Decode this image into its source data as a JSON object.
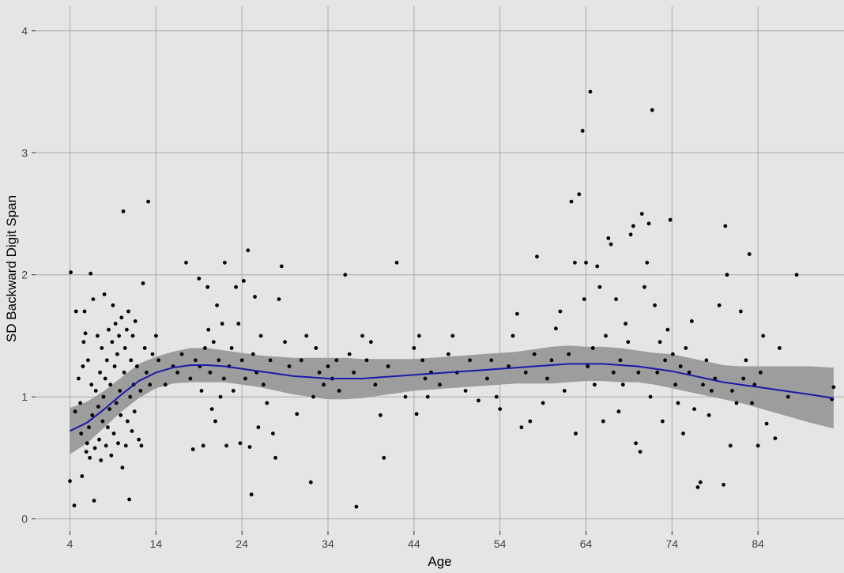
{
  "chart_data": {
    "type": "scatter",
    "title": "",
    "xlabel": "Age",
    "ylabel": "SD Backward Digit Span",
    "xlim": [
      0,
      94
    ],
    "ylim": [
      -0.1,
      4.2
    ],
    "x_ticks": [
      4,
      14,
      24,
      34,
      44,
      54,
      64,
      74,
      84
    ],
    "x_tick_labels": [
      "4",
      "14",
      "24",
      "34",
      "44",
      "54",
      "64",
      "74",
      "84"
    ],
    "y_ticks": [
      0,
      1,
      2,
      3,
      4
    ],
    "y_tick_labels": [
      "0",
      "1",
      "2",
      "3",
      "4"
    ],
    "grid": true,
    "colors": {
      "background": "#e5e5e5",
      "grid": "#aaaaaa",
      "points": "#000000",
      "smooth_line": "#1a1aa8",
      "confidence_band": "#999999"
    },
    "points": [
      [
        4.1,
        2.02
      ],
      [
        4.0,
        0.31
      ],
      [
        4.5,
        0.11
      ],
      [
        4.6,
        0.88
      ],
      [
        4.7,
        1.7
      ],
      [
        5.0,
        1.15
      ],
      [
        5.2,
        0.95
      ],
      [
        5.3,
        0.7
      ],
      [
        5.4,
        0.35
      ],
      [
        5.5,
        1.25
      ],
      [
        5.6,
        1.45
      ],
      [
        5.7,
        1.7
      ],
      [
        5.8,
        1.52
      ],
      [
        5.9,
        0.55
      ],
      [
        6.0,
        0.62
      ],
      [
        6.1,
        1.3
      ],
      [
        6.2,
        0.75
      ],
      [
        6.3,
        0.5
      ],
      [
        6.4,
        2.01
      ],
      [
        6.5,
        1.1
      ],
      [
        6.6,
        0.85
      ],
      [
        6.7,
        1.8
      ],
      [
        6.8,
        0.15
      ],
      [
        6.9,
        0.58
      ],
      [
        7.0,
        1.05
      ],
      [
        7.2,
        1.5
      ],
      [
        7.3,
        0.92
      ],
      [
        7.4,
        0.65
      ],
      [
        7.5,
        1.2
      ],
      [
        7.6,
        0.48
      ],
      [
        7.7,
        1.4
      ],
      [
        7.8,
        0.8
      ],
      [
        7.9,
        1.0
      ],
      [
        8.0,
        1.84
      ],
      [
        8.1,
        1.15
      ],
      [
        8.2,
        0.6
      ],
      [
        8.3,
        1.3
      ],
      [
        8.4,
        0.75
      ],
      [
        8.5,
        1.55
      ],
      [
        8.6,
        0.9
      ],
      [
        8.7,
        1.1
      ],
      [
        8.8,
        0.52
      ],
      [
        8.9,
        1.45
      ],
      [
        9.0,
        1.75
      ],
      [
        9.1,
        0.7
      ],
      [
        9.2,
        1.25
      ],
      [
        9.3,
        1.6
      ],
      [
        9.4,
        0.95
      ],
      [
        9.5,
        1.35
      ],
      [
        9.6,
        0.62
      ],
      [
        9.7,
        1.5
      ],
      [
        9.8,
        1.05
      ],
      [
        9.9,
        0.85
      ],
      [
        10.0,
        1.65
      ],
      [
        10.1,
        0.42
      ],
      [
        10.2,
        2.52
      ],
      [
        10.3,
        1.2
      ],
      [
        10.4,
        1.4
      ],
      [
        10.5,
        0.6
      ],
      [
        10.6,
        1.55
      ],
      [
        10.7,
        0.8
      ],
      [
        10.8,
        1.7
      ],
      [
        10.9,
        0.16
      ],
      [
        11.0,
        1.0
      ],
      [
        11.1,
        1.3
      ],
      [
        11.2,
        0.72
      ],
      [
        11.3,
        1.5
      ],
      [
        11.4,
        1.1
      ],
      [
        11.5,
        0.88
      ],
      [
        11.6,
        1.62
      ],
      [
        11.8,
        1.25
      ],
      [
        12.0,
        0.65
      ],
      [
        12.2,
        1.05
      ],
      [
        12.3,
        0.6
      ],
      [
        12.5,
        1.93
      ],
      [
        12.7,
        1.4
      ],
      [
        12.9,
        1.2
      ],
      [
        13.1,
        2.6
      ],
      [
        13.3,
        1.1
      ],
      [
        13.6,
        1.35
      ],
      [
        14.0,
        1.5
      ],
      [
        14.3,
        1.3
      ],
      [
        15.1,
        1.1
      ],
      [
        16.0,
        1.25
      ],
      [
        16.5,
        1.2
      ],
      [
        17.0,
        1.35
      ],
      [
        17.5,
        2.1
      ],
      [
        18.0,
        1.15
      ],
      [
        18.3,
        0.57
      ],
      [
        18.6,
        1.3
      ],
      [
        19.0,
        1.97
      ],
      [
        19.1,
        1.25
      ],
      [
        19.3,
        1.05
      ],
      [
        19.5,
        0.6
      ],
      [
        19.7,
        1.4
      ],
      [
        20.0,
        1.9
      ],
      [
        20.1,
        1.55
      ],
      [
        20.3,
        1.2
      ],
      [
        20.5,
        0.9
      ],
      [
        20.7,
        1.45
      ],
      [
        20.9,
        0.8
      ],
      [
        21.1,
        1.75
      ],
      [
        21.3,
        1.3
      ],
      [
        21.5,
        1.0
      ],
      [
        21.7,
        1.6
      ],
      [
        21.9,
        1.15
      ],
      [
        22.0,
        2.1
      ],
      [
        22.2,
        0.6
      ],
      [
        22.5,
        1.25
      ],
      [
        22.8,
        1.4
      ],
      [
        23.0,
        1.05
      ],
      [
        23.3,
        1.9
      ],
      [
        23.6,
        1.6
      ],
      [
        23.8,
        0.62
      ],
      [
        24.0,
        1.3
      ],
      [
        24.2,
        1.95
      ],
      [
        24.4,
        1.15
      ],
      [
        24.7,
        2.2
      ],
      [
        24.9,
        0.59
      ],
      [
        25.1,
        0.2
      ],
      [
        25.3,
        1.35
      ],
      [
        25.5,
        1.82
      ],
      [
        25.7,
        1.2
      ],
      [
        25.9,
        0.75
      ],
      [
        26.2,
        1.5
      ],
      [
        26.5,
        1.1
      ],
      [
        26.9,
        0.95
      ],
      [
        27.3,
        1.3
      ],
      [
        27.6,
        0.7
      ],
      [
        27.9,
        0.5
      ],
      [
        28.3,
        1.8
      ],
      [
        28.6,
        2.07
      ],
      [
        29.0,
        1.45
      ],
      [
        29.5,
        1.25
      ],
      [
        30.4,
        0.86
      ],
      [
        30.9,
        1.3
      ],
      [
        31.5,
        1.5
      ],
      [
        32.0,
        0.3
      ],
      [
        32.3,
        1.0
      ],
      [
        32.6,
        1.4
      ],
      [
        33.0,
        1.2
      ],
      [
        33.5,
        1.1
      ],
      [
        34.0,
        1.25
      ],
      [
        34.5,
        1.15
      ],
      [
        35.0,
        1.3
      ],
      [
        35.3,
        1.05
      ],
      [
        36.0,
        2.0
      ],
      [
        36.5,
        1.35
      ],
      [
        37.0,
        1.2
      ],
      [
        37.3,
        0.1
      ],
      [
        38.0,
        1.5
      ],
      [
        38.5,
        1.3
      ],
      [
        39.0,
        1.45
      ],
      [
        39.5,
        1.1
      ],
      [
        40.1,
        0.85
      ],
      [
        40.5,
        0.5
      ],
      [
        41.0,
        1.25
      ],
      [
        42.0,
        2.1
      ],
      [
        43.0,
        1.0
      ],
      [
        44.0,
        1.4
      ],
      [
        44.3,
        0.86
      ],
      [
        44.6,
        1.5
      ],
      [
        45.0,
        1.3
      ],
      [
        45.3,
        1.15
      ],
      [
        45.6,
        1.0
      ],
      [
        46.0,
        1.2
      ],
      [
        47.0,
        1.1
      ],
      [
        48.0,
        1.35
      ],
      [
        48.5,
        1.5
      ],
      [
        49.0,
        1.2
      ],
      [
        50.0,
        1.05
      ],
      [
        50.5,
        1.3
      ],
      [
        51.5,
        0.97
      ],
      [
        52.5,
        1.15
      ],
      [
        53.0,
        1.3
      ],
      [
        53.6,
        1.0
      ],
      [
        54.0,
        0.9
      ],
      [
        55.0,
        1.25
      ],
      [
        55.5,
        1.5
      ],
      [
        56.0,
        1.68
      ],
      [
        56.5,
        0.75
      ],
      [
        57.0,
        1.2
      ],
      [
        57.5,
        0.8
      ],
      [
        58.0,
        1.35
      ],
      [
        58.3,
        2.15
      ],
      [
        59.0,
        0.95
      ],
      [
        59.5,
        1.15
      ],
      [
        60.0,
        1.3
      ],
      [
        60.5,
        1.56
      ],
      [
        61.0,
        1.7
      ],
      [
        61.5,
        1.05
      ],
      [
        62.0,
        1.35
      ],
      [
        62.3,
        2.6
      ],
      [
        62.7,
        2.1
      ],
      [
        62.8,
        0.7
      ],
      [
        63.2,
        2.66
      ],
      [
        63.6,
        3.18
      ],
      [
        63.8,
        1.8
      ],
      [
        64.0,
        2.1
      ],
      [
        64.2,
        1.25
      ],
      [
        64.5,
        3.5
      ],
      [
        64.8,
        1.4
      ],
      [
        65.0,
        1.1
      ],
      [
        65.3,
        2.07
      ],
      [
        65.6,
        1.9
      ],
      [
        66.0,
        0.8
      ],
      [
        66.3,
        1.5
      ],
      [
        66.6,
        2.3
      ],
      [
        66.9,
        2.25
      ],
      [
        67.2,
        1.2
      ],
      [
        67.5,
        1.8
      ],
      [
        67.8,
        0.88
      ],
      [
        68.0,
        1.3
      ],
      [
        68.3,
        1.1
      ],
      [
        68.6,
        1.6
      ],
      [
        68.9,
        1.45
      ],
      [
        69.2,
        2.33
      ],
      [
        69.5,
        2.4
      ],
      [
        69.8,
        0.62
      ],
      [
        70.1,
        1.2
      ],
      [
        70.3,
        0.55
      ],
      [
        70.5,
        2.5
      ],
      [
        70.8,
        1.9
      ],
      [
        71.1,
        2.1
      ],
      [
        71.3,
        2.42
      ],
      [
        71.5,
        1.0
      ],
      [
        71.7,
        3.35
      ],
      [
        72.0,
        1.75
      ],
      [
        72.3,
        1.2
      ],
      [
        72.6,
        1.45
      ],
      [
        72.9,
        0.8
      ],
      [
        73.2,
        1.3
      ],
      [
        73.5,
        1.55
      ],
      [
        73.8,
        2.45
      ],
      [
        74.1,
        1.35
      ],
      [
        74.4,
        1.1
      ],
      [
        74.7,
        0.95
      ],
      [
        75.0,
        1.25
      ],
      [
        75.3,
        0.7
      ],
      [
        75.6,
        1.4
      ],
      [
        76.0,
        1.2
      ],
      [
        76.3,
        1.62
      ],
      [
        76.6,
        0.9
      ],
      [
        77.0,
        0.26
      ],
      [
        77.3,
        0.3
      ],
      [
        77.6,
        1.1
      ],
      [
        78.0,
        1.3
      ],
      [
        78.3,
        0.85
      ],
      [
        78.6,
        1.05
      ],
      [
        79.0,
        1.15
      ],
      [
        79.5,
        1.75
      ],
      [
        80.0,
        0.28
      ],
      [
        80.2,
        2.4
      ],
      [
        80.4,
        2.0
      ],
      [
        80.8,
        0.6
      ],
      [
        81.0,
        1.05
      ],
      [
        81.5,
        0.95
      ],
      [
        82.0,
        1.7
      ],
      [
        82.3,
        1.15
      ],
      [
        82.6,
        1.3
      ],
      [
        83.0,
        2.17
      ],
      [
        83.3,
        0.95
      ],
      [
        83.6,
        1.1
      ],
      [
        84.0,
        0.6
      ],
      [
        84.3,
        1.2
      ],
      [
        84.6,
        1.5
      ],
      [
        85.0,
        0.78
      ],
      [
        86.0,
        0.66
      ],
      [
        86.5,
        1.4
      ],
      [
        87.5,
        1.0
      ],
      [
        88.5,
        2.0
      ],
      [
        92.6,
        0.98
      ],
      [
        92.8,
        1.08
      ]
    ],
    "smooth": {
      "x": [
        4,
        6,
        8,
        10,
        12,
        14,
        16,
        18,
        20,
        22,
        24,
        26,
        28,
        30,
        32,
        34,
        36,
        38,
        40,
        42,
        44,
        46,
        48,
        50,
        52,
        54,
        56,
        58,
        60,
        62,
        64,
        66,
        68,
        70,
        72,
        74,
        76,
        78,
        80,
        82,
        84,
        86,
        88,
        90,
        92.8
      ],
      "y": [
        0.72,
        0.79,
        0.9,
        1.02,
        1.13,
        1.2,
        1.24,
        1.26,
        1.26,
        1.25,
        1.23,
        1.21,
        1.19,
        1.17,
        1.16,
        1.15,
        1.15,
        1.15,
        1.16,
        1.17,
        1.18,
        1.19,
        1.2,
        1.21,
        1.22,
        1.23,
        1.24,
        1.25,
        1.26,
        1.27,
        1.27,
        1.27,
        1.26,
        1.25,
        1.23,
        1.21,
        1.18,
        1.15,
        1.12,
        1.1,
        1.08,
        1.06,
        1.04,
        1.02,
        0.99
      ],
      "lower": [
        0.53,
        0.62,
        0.75,
        0.88,
        0.99,
        1.07,
        1.11,
        1.12,
        1.12,
        1.12,
        1.1,
        1.08,
        1.05,
        1.02,
        1.0,
        0.98,
        0.98,
        0.99,
        1.01,
        1.03,
        1.05,
        1.06,
        1.07,
        1.08,
        1.09,
        1.1,
        1.11,
        1.11,
        1.11,
        1.12,
        1.13,
        1.13,
        1.12,
        1.12,
        1.1,
        1.07,
        1.04,
        1.01,
        0.98,
        0.95,
        0.91,
        0.87,
        0.83,
        0.79,
        0.74
      ],
      "upper": [
        0.91,
        0.96,
        1.05,
        1.16,
        1.27,
        1.33,
        1.37,
        1.4,
        1.4,
        1.38,
        1.36,
        1.34,
        1.33,
        1.32,
        1.32,
        1.32,
        1.32,
        1.31,
        1.31,
        1.31,
        1.31,
        1.32,
        1.33,
        1.34,
        1.35,
        1.36,
        1.37,
        1.39,
        1.41,
        1.42,
        1.41,
        1.41,
        1.4,
        1.38,
        1.36,
        1.35,
        1.32,
        1.29,
        1.26,
        1.25,
        1.25,
        1.25,
        1.25,
        1.25,
        1.24
      ]
    }
  }
}
